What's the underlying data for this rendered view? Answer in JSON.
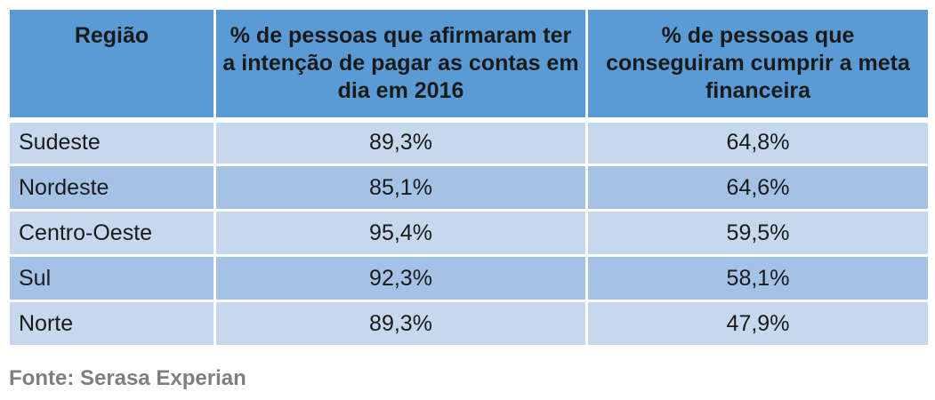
{
  "chart_data": {
    "type": "table",
    "columns": [
      "Região",
      "% de pessoas que afirmaram ter a intenção de pagar as contas em dia em 2016",
      "% de pessoas que conseguiram cumprir a meta financeira"
    ],
    "rows": [
      {
        "region": "Sudeste",
        "pay_on_time": "89,3%",
        "met_goal": "64,8%"
      },
      {
        "region": "Nordeste",
        "pay_on_time": "85,1%",
        "met_goal": "64,6%"
      },
      {
        "region": "Centro-Oeste",
        "pay_on_time": "95,4%",
        "met_goal": "59,5%"
      },
      {
        "region": "Sul",
        "pay_on_time": "92,3%",
        "met_goal": "58,1%"
      },
      {
        "region": "Norte",
        "pay_on_time": "89,3%",
        "met_goal": "47,9%"
      }
    ],
    "source": "Fonte: Serasa Experian",
    "colors": {
      "header": "#5b9bd5",
      "row_light": "#c6d8ee",
      "row_dark": "#a4c2e6",
      "source_text": "#7f7f7f"
    }
  }
}
